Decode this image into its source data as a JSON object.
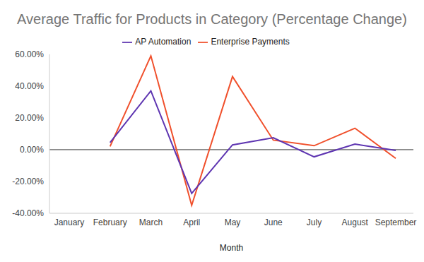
{
  "chart_data": {
    "type": "line",
    "title": "Average Traffic for Products in Category (Percentage Change)",
    "x_label": "Month",
    "categories": [
      "January",
      "February",
      "March",
      "April",
      "May",
      "June",
      "July",
      "August",
      "September"
    ],
    "series": [
      {
        "name": "Enterprise Payments",
        "color": "#f0502c",
        "values": [
          null,
          2,
          59,
          -35,
          46,
          6,
          2.5,
          13.5,
          -5.5
        ]
      },
      {
        "name": "AP Automation",
        "color": "#5e35b1",
        "values": [
          null,
          4.5,
          37,
          -27.5,
          3,
          7.5,
          -4.5,
          3.5,
          -0.5
        ]
      }
    ],
    "ylim": [
      -40,
      60
    ],
    "yticks": [
      {
        "value": -40,
        "label": "-40.00%"
      },
      {
        "value": -20,
        "label": "-20.00%"
      },
      {
        "value": 0,
        "label": "0.00%"
      },
      {
        "value": 20,
        "label": "20.00%"
      },
      {
        "value": 40,
        "label": "40.00%"
      },
      {
        "value": 60,
        "label": "60.00%"
      }
    ],
    "grid": false,
    "legend": "top"
  }
}
